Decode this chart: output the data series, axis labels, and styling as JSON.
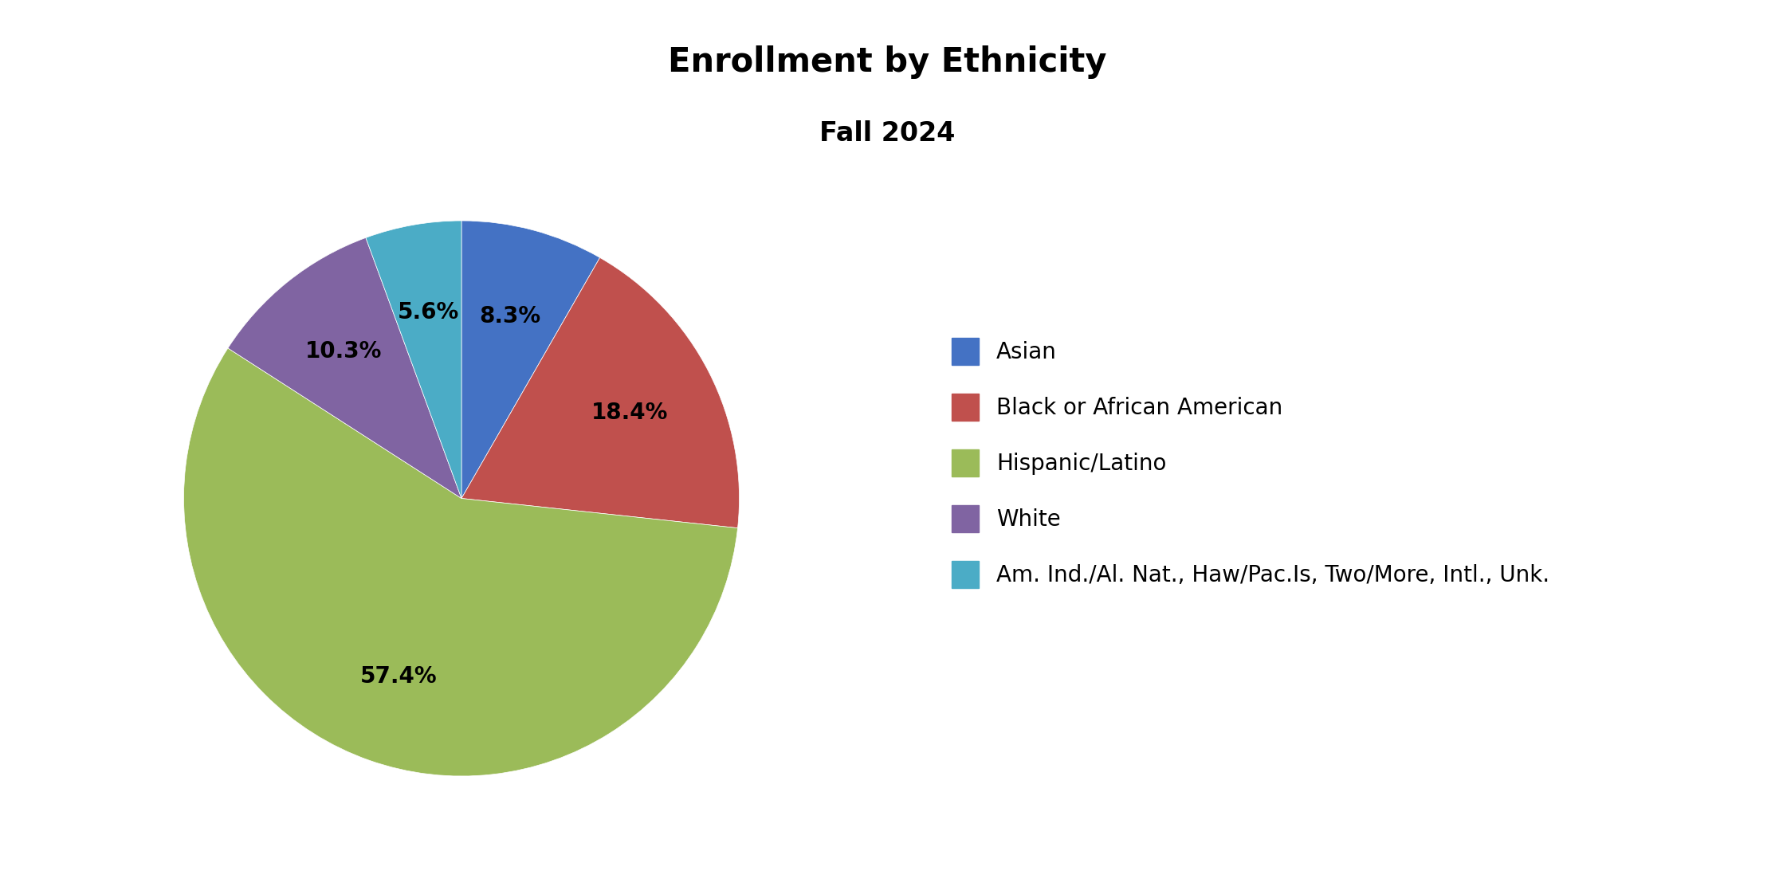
{
  "title": "Enrollment by Ethnicity",
  "subtitle": "Fall 2024",
  "labels": [
    "Asian",
    "Black or African American",
    "Hispanic/Latino",
    "White",
    "Am. Ind./Al. Nat., Haw/Pac.Is, Two/More, Intl., Unk."
  ],
  "values": [
    8.3,
    18.4,
    57.4,
    10.3,
    5.6
  ],
  "colors": [
    "#4472C4",
    "#C0504D",
    "#9BBB59",
    "#8064A2",
    "#4BACC6"
  ],
  "autopct_labels": [
    "8.3%",
    "18.4%",
    "57.4%",
    "10.3%",
    "5.6%"
  ],
  "startangle": 90,
  "title_fontsize": 30,
  "subtitle_fontsize": 24,
  "label_fontsize": 20,
  "legend_fontsize": 20,
  "background_color": "#FFFFFF"
}
